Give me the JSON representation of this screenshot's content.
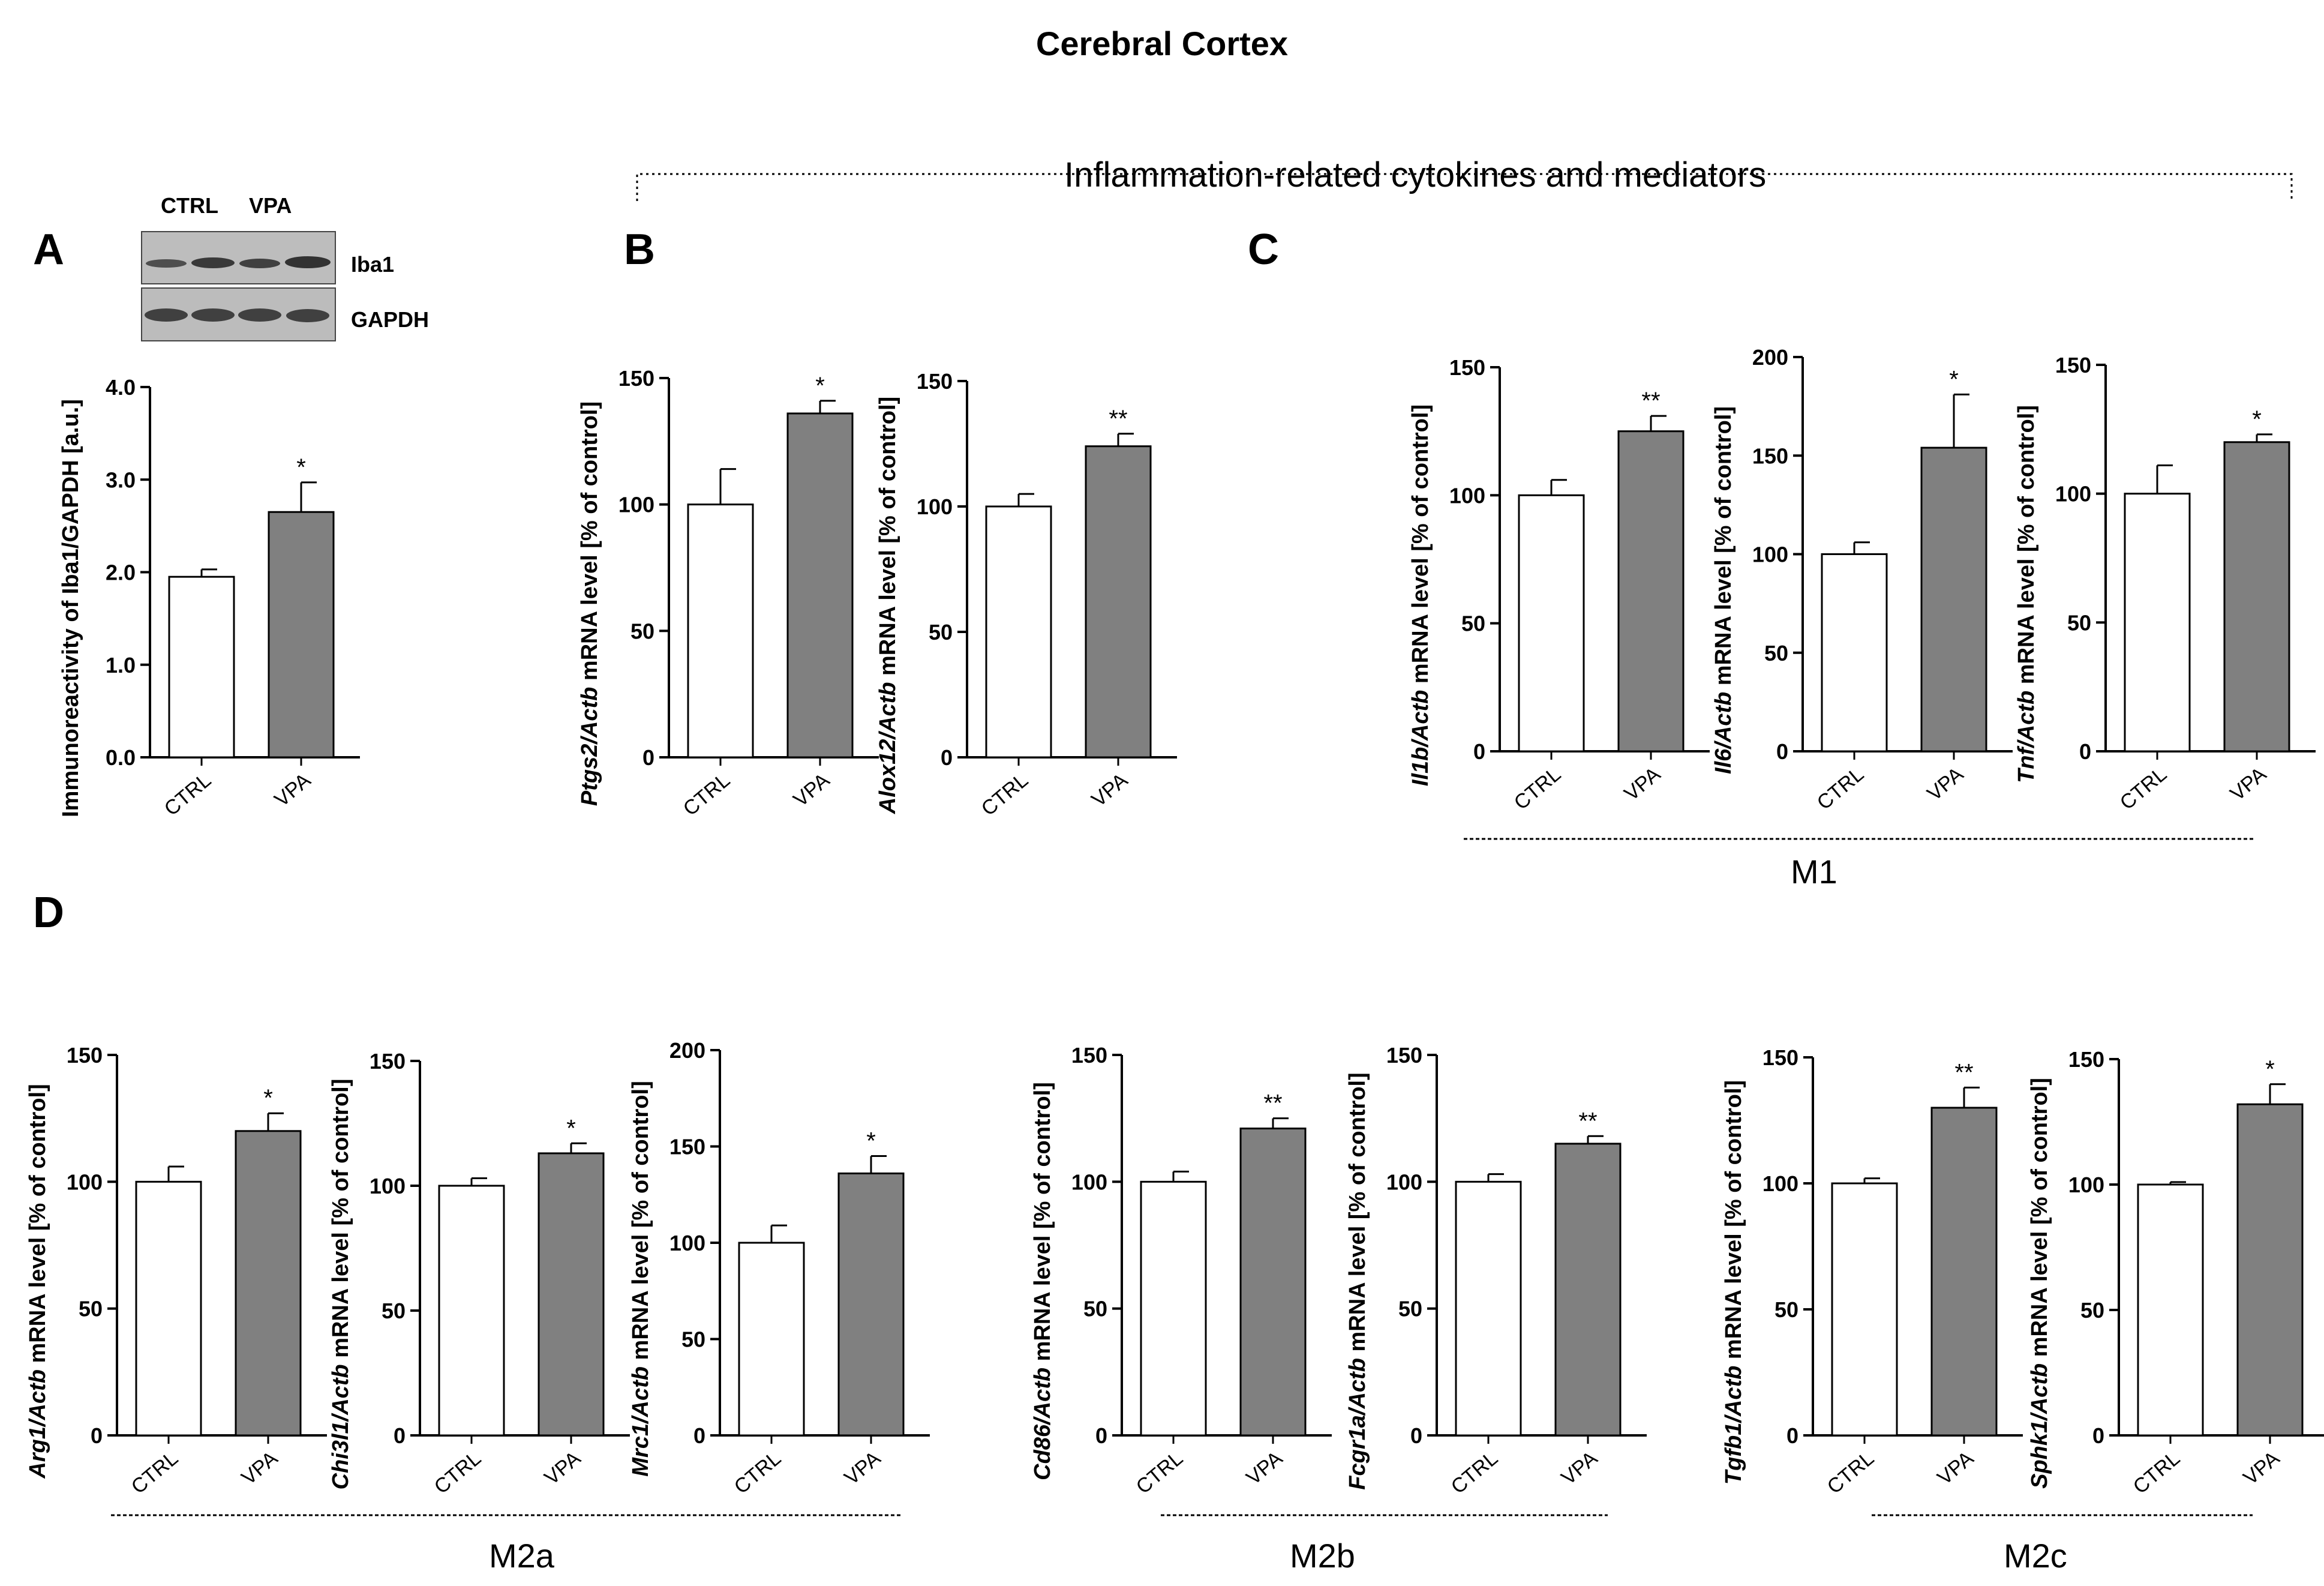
{
  "figure": {
    "title": "Cerebral Cortex",
    "group_title": "Inflammation-related cytokines and mediators",
    "panel_letters": [
      "A",
      "B",
      "C",
      "D"
    ],
    "section_labels": [
      "M1",
      "M2a",
      "M2b",
      "M2c"
    ],
    "western_blot": {
      "lanes": [
        "CTRL",
        "VPA"
      ],
      "bands": [
        "Iba1",
        "GAPDH"
      ]
    },
    "colors": {
      "ctrl_bar": "#ffffff",
      "vpa_bar": "#808080",
      "axis": "#000000"
    }
  },
  "chart_data": [
    {
      "type": "bar",
      "panel": "A",
      "ylabel_parts": [
        {
          "t": "Immunoreactivity of Iba1/GAPDH [a.u.]",
          "i": false
        }
      ],
      "categories": [
        "CTRL",
        "VPA"
      ],
      "values": [
        1.95,
        2.65
      ],
      "errors": [
        0.08,
        0.32
      ],
      "significance": [
        "",
        "*"
      ],
      "ylim": [
        0,
        4
      ],
      "yticks": [
        "0.0",
        "1.0",
        "2.0",
        "3.0",
        "4.0"
      ]
    },
    {
      "type": "bar",
      "panel": "B",
      "ylabel_parts": [
        {
          "t": "Ptgs2/Actb",
          "i": true
        },
        {
          "t": " mRNA level [% of control]",
          "i": false
        }
      ],
      "categories": [
        "CTRL",
        "VPA"
      ],
      "values": [
        100,
        136
      ],
      "errors": [
        14,
        5
      ],
      "significance": [
        "",
        "*"
      ],
      "ylim": [
        0,
        150
      ],
      "yticks": [
        "0",
        "50",
        "100",
        "150"
      ]
    },
    {
      "type": "bar",
      "panel": "B",
      "ylabel_parts": [
        {
          "t": "Alox12/Actb",
          "i": true
        },
        {
          "t": " mRNA level [% of control]",
          "i": false
        }
      ],
      "categories": [
        "CTRL",
        "VPA"
      ],
      "values": [
        100,
        124
      ],
      "errors": [
        5,
        5
      ],
      "significance": [
        "",
        "**"
      ],
      "ylim": [
        0,
        150
      ],
      "yticks": [
        "0",
        "50",
        "100",
        "150"
      ]
    },
    {
      "type": "bar",
      "panel": "C",
      "ylabel_parts": [
        {
          "t": "Il1b/Actb",
          "i": true
        },
        {
          "t": " mRNA level [% of control]",
          "i": false
        }
      ],
      "categories": [
        "CTRL",
        "VPA"
      ],
      "values": [
        100,
        125
      ],
      "errors": [
        6,
        6
      ],
      "significance": [
        "",
        "**"
      ],
      "ylim": [
        0,
        150
      ],
      "yticks": [
        "0",
        "50",
        "100",
        "150"
      ]
    },
    {
      "type": "bar",
      "panel": "C",
      "ylabel_parts": [
        {
          "t": "Il6/Actb",
          "i": true
        },
        {
          "t": " mRNA level [% of control]",
          "i": false
        }
      ],
      "categories": [
        "CTRL",
        "VPA"
      ],
      "values": [
        100,
        154
      ],
      "errors": [
        6,
        27
      ],
      "significance": [
        "",
        "*"
      ],
      "ylim": [
        0,
        200
      ],
      "yticks": [
        "0",
        "50",
        "100",
        "150",
        "200"
      ]
    },
    {
      "type": "bar",
      "panel": "C",
      "ylabel_parts": [
        {
          "t": "Tnf/Actb",
          "i": true
        },
        {
          "t": " mRNA level [% of control]",
          "i": false
        }
      ],
      "categories": [
        "CTRL",
        "VPA"
      ],
      "values": [
        100,
        120
      ],
      "errors": [
        11,
        3
      ],
      "significance": [
        "",
        "*"
      ],
      "ylim": [
        0,
        150
      ],
      "yticks": [
        "0",
        "50",
        "100",
        "150"
      ]
    },
    {
      "type": "bar",
      "panel": "D",
      "ylabel_parts": [
        {
          "t": "Arg1/Actb",
          "i": true
        },
        {
          "t": " mRNA level [% of control]",
          "i": false
        }
      ],
      "categories": [
        "CTRL",
        "VPA"
      ],
      "values": [
        100,
        120
      ],
      "errors": [
        6,
        7
      ],
      "significance": [
        "",
        "*"
      ],
      "ylim": [
        0,
        150
      ],
      "yticks": [
        "0",
        "50",
        "100",
        "150"
      ]
    },
    {
      "type": "bar",
      "panel": "D",
      "ylabel_parts": [
        {
          "t": "Chi3l1/Actb",
          "i": true
        },
        {
          "t": " mRNA level [% of control]",
          "i": false
        }
      ],
      "categories": [
        "CTRL",
        "VPA"
      ],
      "values": [
        100,
        113
      ],
      "errors": [
        3,
        4
      ],
      "significance": [
        "",
        "*"
      ],
      "ylim": [
        0,
        150
      ],
      "yticks": [
        "0",
        "50",
        "100",
        "150"
      ]
    },
    {
      "type": "bar",
      "panel": "D",
      "ylabel_parts": [
        {
          "t": "Mrc1/Actb",
          "i": true
        },
        {
          "t": " mRNA level [% of control]",
          "i": false
        }
      ],
      "categories": [
        "CTRL",
        "VPA"
      ],
      "values": [
        100,
        136
      ],
      "errors": [
        9,
        9
      ],
      "significance": [
        "",
        "*"
      ],
      "ylim": [
        0,
        200
      ],
      "yticks": [
        "0",
        "50",
        "100",
        "150",
        "200"
      ]
    },
    {
      "type": "bar",
      "panel": "D",
      "ylabel_parts": [
        {
          "t": "Cd86/Actb",
          "i": true
        },
        {
          "t": " mRNA level [% of control]",
          "i": false
        }
      ],
      "categories": [
        "CTRL",
        "VPA"
      ],
      "values": [
        100,
        121
      ],
      "errors": [
        4,
        4
      ],
      "significance": [
        "",
        "**"
      ],
      "ylim": [
        0,
        150
      ],
      "yticks": [
        "0",
        "50",
        "100",
        "150"
      ]
    },
    {
      "type": "bar",
      "panel": "D",
      "ylabel_parts": [
        {
          "t": "Fcgr1a/Actb",
          "i": true
        },
        {
          "t": " mRNA level [% of control]",
          "i": false
        }
      ],
      "categories": [
        "CTRL",
        "VPA"
      ],
      "values": [
        100,
        115
      ],
      "errors": [
        3,
        3
      ],
      "significance": [
        "",
        "**"
      ],
      "ylim": [
        0,
        150
      ],
      "yticks": [
        "0",
        "50",
        "100",
        "150"
      ]
    },
    {
      "type": "bar",
      "panel": "D",
      "ylabel_parts": [
        {
          "t": "Tgfb1/Actb",
          "i": true
        },
        {
          "t": " mRNA level [% of control]",
          "i": false
        }
      ],
      "categories": [
        "CTRL",
        "VPA"
      ],
      "values": [
        100,
        130
      ],
      "errors": [
        2,
        8
      ],
      "significance": [
        "",
        "**"
      ],
      "ylim": [
        0,
        150
      ],
      "yticks": [
        "0",
        "50",
        "100",
        "150"
      ]
    },
    {
      "type": "bar",
      "panel": "D",
      "ylabel_parts": [
        {
          "t": "Sphk1/Actb",
          "i": true
        },
        {
          "t": " mRNA level [% of control]",
          "i": false
        }
      ],
      "categories": [
        "CTRL",
        "VPA"
      ],
      "values": [
        100,
        132
      ],
      "errors": [
        1,
        8
      ],
      "significance": [
        "",
        "*"
      ],
      "ylim": [
        0,
        150
      ],
      "yticks": [
        "0",
        "50",
        "100",
        "150"
      ]
    }
  ]
}
